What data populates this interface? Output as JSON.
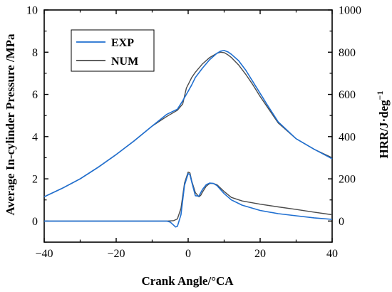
{
  "chart_data": {
    "type": "line",
    "xlabel": "Crank Angle/°CA",
    "ylabel_left": "Average In-cylinder Pressure /MPa",
    "ylabel_right_main": "HRR/J·deg",
    "ylabel_right_sup": "−1",
    "xlim": [
      -40,
      40
    ],
    "ylim_left": [
      -1,
      10
    ],
    "ylim_right": [
      -100,
      1000
    ],
    "x_ticks": [
      -40,
      -20,
      0,
      20,
      40
    ],
    "x_tick_labels": [
      "−40",
      "−20",
      "0",
      "20",
      "40"
    ],
    "y_left_ticks": [
      0,
      2,
      4,
      6,
      8,
      10
    ],
    "y_left_tick_labels": [
      "0",
      "2",
      "4",
      "6",
      "8",
      "10"
    ],
    "y_right_ticks": [
      0,
      200,
      400,
      600,
      800,
      1000
    ],
    "y_right_tick_labels": [
      "0",
      "200",
      "400",
      "600",
      "800",
      "1000"
    ],
    "grid": false,
    "legend_position": "top-left",
    "legend": [
      {
        "name": "EXP",
        "color": "#1f6fd1"
      },
      {
        "name": "NUM",
        "color": "#4a4a4a"
      }
    ],
    "series": [
      {
        "name": "EXP",
        "curve": "pressure",
        "axis": "left",
        "color": "#1f6fd1",
        "x": [
          -40,
          -35,
          -30,
          -25,
          -20,
          -15,
          -10,
          -6,
          -3,
          -1.5,
          0,
          1,
          2,
          4,
          6,
          8,
          9,
          10,
          11,
          12,
          14,
          16,
          18,
          20,
          22,
          25,
          30,
          35,
          40
        ],
        "y": [
          1.15,
          1.55,
          2.0,
          2.55,
          3.15,
          3.8,
          4.5,
          5.05,
          5.3,
          5.7,
          6.15,
          6.45,
          6.8,
          7.25,
          7.65,
          7.95,
          8.05,
          8.08,
          8.02,
          7.9,
          7.6,
          7.15,
          6.6,
          6.05,
          5.5,
          4.7,
          3.9,
          3.4,
          2.95
        ]
      },
      {
        "name": "NUM",
        "curve": "pressure",
        "axis": "left",
        "color": "#4a4a4a",
        "x": [
          -40,
          -35,
          -30,
          -25,
          -20,
          -15,
          -10,
          -6,
          -3,
          -1.5,
          -0.5,
          1,
          2,
          4,
          6,
          8,
          9,
          10,
          11,
          12,
          14,
          16,
          18,
          20,
          22,
          25,
          30,
          35,
          40
        ],
        "y": [
          1.15,
          1.55,
          2.0,
          2.55,
          3.15,
          3.8,
          4.5,
          4.95,
          5.25,
          5.55,
          6.3,
          6.8,
          7.05,
          7.45,
          7.75,
          7.95,
          8.0,
          7.98,
          7.88,
          7.75,
          7.4,
          6.95,
          6.45,
          5.9,
          5.4,
          4.65,
          3.9,
          3.4,
          3.0
        ]
      },
      {
        "name": "EXP",
        "curve": "hrr",
        "axis": "right",
        "color": "#1f6fd1",
        "x": [
          -40,
          -10,
          -6,
          -5,
          -4,
          -3.5,
          -3,
          -2,
          -1,
          0,
          0.5,
          1,
          2,
          3,
          3.5,
          4,
          5,
          6,
          7,
          8,
          10,
          12,
          15,
          20,
          25,
          30,
          35,
          40
        ],
        "y": [
          0,
          0,
          0,
          -5,
          -20,
          -28,
          -25,
          30,
          170,
          225,
          220,
          185,
          120,
          118,
          135,
          150,
          172,
          180,
          178,
          168,
          130,
          100,
          75,
          50,
          35,
          25,
          15,
          8
        ]
      },
      {
        "name": "NUM",
        "curve": "hrr",
        "axis": "right",
        "color": "#4a4a4a",
        "x": [
          -40,
          -10,
          -6,
          -4,
          -3,
          -2,
          -1,
          0,
          0.5,
          1,
          2,
          3,
          3.5,
          4,
          5,
          6,
          7,
          8,
          10,
          12,
          15,
          20,
          25,
          30,
          35,
          40
        ],
        "y": [
          0,
          0,
          0,
          2,
          10,
          60,
          180,
          232,
          228,
          190,
          135,
          115,
          122,
          138,
          165,
          178,
          178,
          172,
          140,
          112,
          95,
          80,
          67,
          55,
          42,
          30
        ]
      }
    ]
  }
}
